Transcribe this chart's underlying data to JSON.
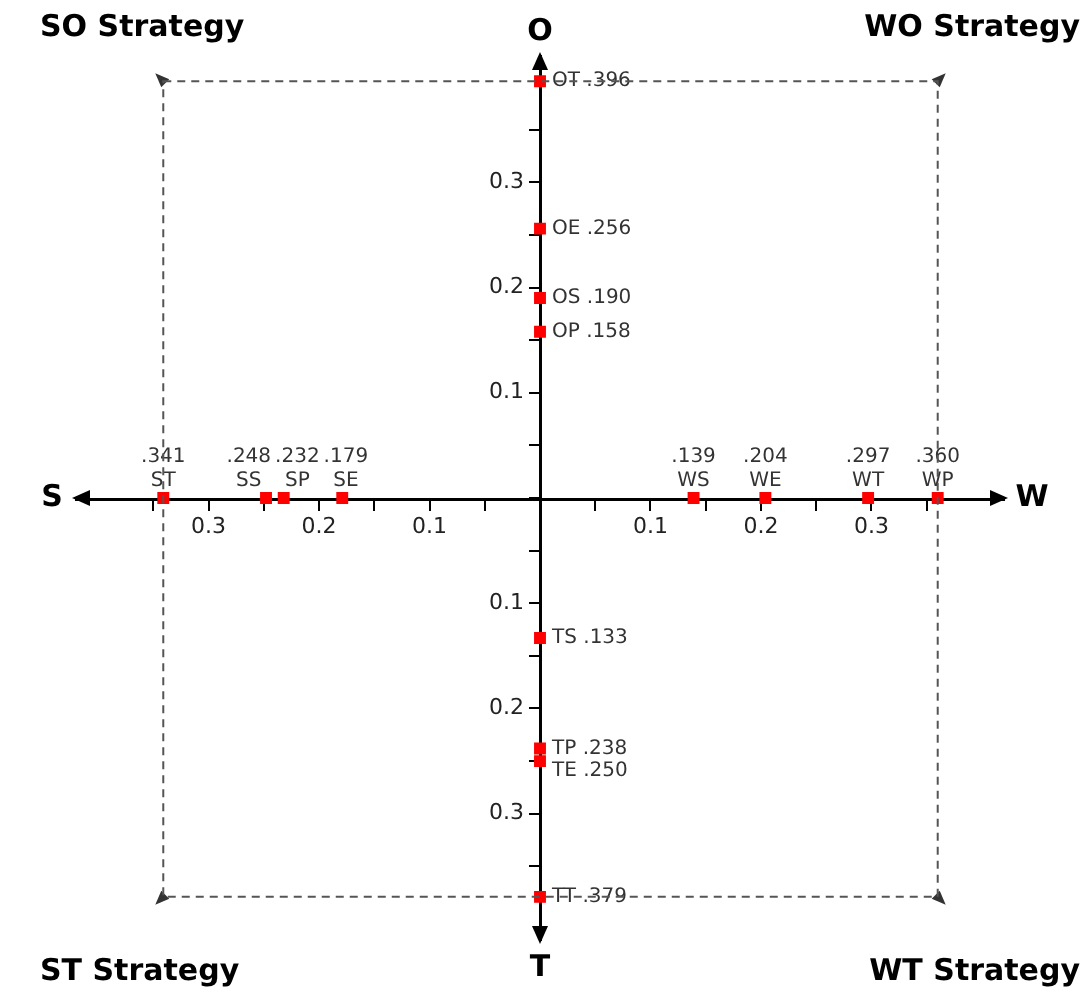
{
  "chart_data": {
    "type": "scatter",
    "marker": "square",
    "legend": false,
    "grid": false,
    "xlim": [
      -0.42,
      0.42
    ],
    "ylim": [
      -0.42,
      0.42
    ],
    "xticks": [
      {
        "value": -0.35,
        "label": null
      },
      {
        "value": -0.3,
        "label": "0.3"
      },
      {
        "value": -0.25,
        "label": null
      },
      {
        "value": -0.2,
        "label": "0.2"
      },
      {
        "value": -0.15,
        "label": null
      },
      {
        "value": -0.1,
        "label": "0.1"
      },
      {
        "value": -0.05,
        "label": null
      },
      {
        "value": 0,
        "label": null
      },
      {
        "value": 0.05,
        "label": null
      },
      {
        "value": 0.1,
        "label": "0.1"
      },
      {
        "value": 0.15,
        "label": null
      },
      {
        "value": 0.2,
        "label": "0.2"
      },
      {
        "value": 0.25,
        "label": null
      },
      {
        "value": 0.3,
        "label": "0.3"
      },
      {
        "value": 0.35,
        "label": null
      }
    ],
    "yticks": [
      {
        "value": -0.35,
        "label": null
      },
      {
        "value": -0.3,
        "label": "0.3"
      },
      {
        "value": -0.25,
        "label": null
      },
      {
        "value": -0.2,
        "label": "0.2"
      },
      {
        "value": -0.15,
        "label": null
      },
      {
        "value": -0.1,
        "label": "0.1"
      },
      {
        "value": -0.05,
        "label": null
      },
      {
        "value": 0,
        "label": null
      },
      {
        "value": 0.05,
        "label": null
      },
      {
        "value": 0.1,
        "label": "0.1"
      },
      {
        "value": 0.15,
        "label": null
      },
      {
        "value": 0.2,
        "label": "0.2"
      },
      {
        "value": 0.25,
        "label": null
      },
      {
        "value": 0.3,
        "label": "0.3"
      },
      {
        "value": 0.35,
        "label": null
      }
    ],
    "annotations": [
      "SO Strategy",
      "WO Strategy",
      "ST Strategy",
      "WT Strategy",
      "S",
      "W",
      "O",
      "T",
      {
        "text": ".341 ST",
        "x": -0.341,
        "y": 0
      },
      {
        "text": ".248 SS",
        "x": -0.248,
        "y": 0
      },
      {
        "text": ".232 SP",
        "x": -0.232,
        "y": 0
      },
      {
        "text": ".179 SE",
        "x": -0.179,
        "y": 0
      },
      {
        "text": ".139 WS",
        "x": 0.139,
        "y": 0
      },
      {
        "text": ".204 WE",
        "x": 0.204,
        "y": 0
      },
      {
        "text": ".297 WT",
        "x": 0.297,
        "y": 0
      },
      {
        "text": ".360 WP",
        "x": 0.36,
        "y": 0
      }
    ],
    "series": [
      {
        "color": "#ff0000",
        "x": [
          -0.341,
          -0.248,
          -0.232,
          -0.179,
          0.139,
          0.204,
          0.297,
          0.36
        ],
        "values": [
          0,
          0,
          0,
          0,
          0,
          0,
          0,
          0
        ]
      },
      {
        "color": "#ff0000",
        "x": [
          0,
          0,
          0,
          0,
          0,
          0,
          0,
          0
        ],
        "values": [
          0.396,
          0.256,
          0.19,
          0.158,
          -0.133,
          -0.238,
          -0.25,
          -0.379
        ],
        "value_labels": [
          "OT .396",
          "OE .256",
          "OS .190",
          "OP .158",
          "TS .133",
          "TP .238",
          "TE .250",
          "TT .379"
        ]
      }
    ]
  }
}
